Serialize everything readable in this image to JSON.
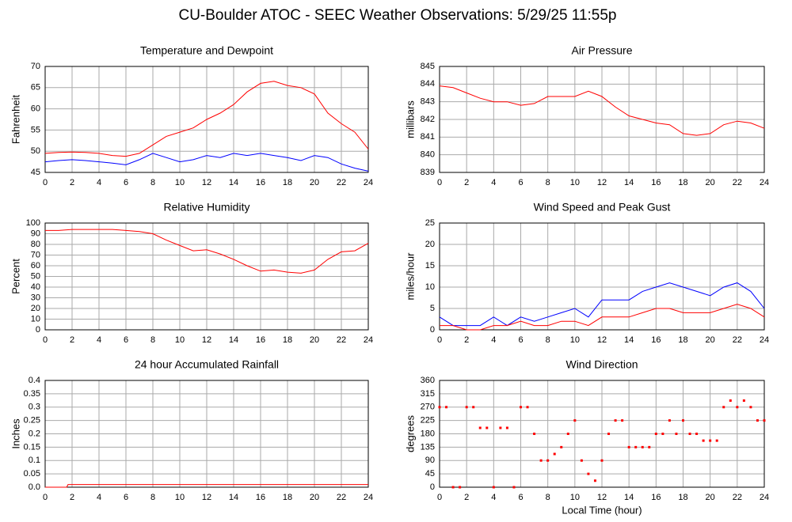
{
  "title": "CU-Boulder ATOC - SEEC Weather Observations: 5/29/25 11:55p",
  "chart_data": [
    {
      "type": "line",
      "title": "Temperature and Dewpoint",
      "ylabel": "Fahrenheit",
      "grid": true,
      "x": [
        0,
        1,
        2,
        3,
        4,
        5,
        6,
        7,
        8,
        9,
        10,
        11,
        12,
        13,
        14,
        15,
        16,
        17,
        18,
        19,
        20,
        21,
        22,
        23,
        24
      ],
      "xlim": [
        0,
        24
      ],
      "xticks": [
        0,
        2,
        4,
        6,
        8,
        10,
        12,
        14,
        16,
        18,
        20,
        22,
        24
      ],
      "ylim": [
        45,
        70
      ],
      "yticks": [
        45,
        50,
        55,
        60,
        65,
        70
      ],
      "series": [
        {
          "color": "#ff0000",
          "values": [
            49.5,
            49.7,
            49.8,
            49.7,
            49.5,
            49,
            48.8,
            49.5,
            51.5,
            53.5,
            54.5,
            55.5,
            57.5,
            59,
            61,
            64,
            66,
            66.5,
            65.5,
            65,
            63.5,
            59,
            56.5,
            54.5,
            50.5
          ]
        },
        {
          "color": "#0000ff",
          "values": [
            47.5,
            47.8,
            48,
            47.8,
            47.5,
            47.2,
            46.8,
            48,
            49.5,
            48.5,
            47.5,
            48,
            49,
            48.5,
            49.5,
            49,
            49.5,
            49,
            48.5,
            47.8,
            49,
            48.5,
            47,
            46,
            45.3
          ]
        }
      ]
    },
    {
      "type": "line",
      "title": "Air Pressure",
      "ylabel": "millibars",
      "grid": true,
      "x": [
        0,
        1,
        2,
        3,
        4,
        5,
        6,
        7,
        8,
        9,
        10,
        11,
        12,
        13,
        14,
        15,
        16,
        17,
        18,
        19,
        20,
        21,
        22,
        23,
        24
      ],
      "xlim": [
        0,
        24
      ],
      "xticks": [
        0,
        2,
        4,
        6,
        8,
        10,
        12,
        14,
        16,
        18,
        20,
        22,
        24
      ],
      "ylim": [
        839,
        845
      ],
      "yticks": [
        839,
        840,
        841,
        842,
        843,
        844,
        845
      ],
      "series": [
        {
          "color": "#ff0000",
          "values": [
            843.9,
            843.8,
            843.5,
            843.2,
            843.0,
            843.0,
            842.8,
            842.9,
            843.3,
            843.3,
            843.3,
            843.6,
            843.3,
            842.7,
            842.2,
            842.0,
            841.8,
            841.7,
            841.2,
            841.1,
            841.2,
            841.7,
            841.9,
            841.8,
            841.5
          ]
        }
      ]
    },
    {
      "type": "line",
      "title": "Relative Humidity",
      "ylabel": "Percent",
      "grid": true,
      "x": [
        0,
        1,
        2,
        3,
        4,
        5,
        6,
        7,
        8,
        9,
        10,
        11,
        12,
        13,
        14,
        15,
        16,
        17,
        18,
        19,
        20,
        21,
        22,
        23,
        24
      ],
      "xlim": [
        0,
        24
      ],
      "xticks": [
        0,
        2,
        4,
        6,
        8,
        10,
        12,
        14,
        16,
        18,
        20,
        22,
        24
      ],
      "ylim": [
        0,
        100
      ],
      "yticks": [
        0,
        10,
        20,
        30,
        40,
        50,
        60,
        70,
        80,
        90,
        100
      ],
      "series": [
        {
          "color": "#ff0000",
          "values": [
            93,
            93,
            94,
            94,
            94,
            94,
            93,
            92,
            90,
            84,
            79,
            74,
            75,
            71,
            66,
            60,
            55,
            56,
            54,
            53,
            56,
            66,
            73,
            74,
            81
          ]
        }
      ]
    },
    {
      "type": "line",
      "title": "Wind Speed and Peak Gust",
      "ylabel": "miles/hour",
      "grid": true,
      "x": [
        0,
        1,
        2,
        3,
        4,
        5,
        6,
        7,
        8,
        9,
        10,
        11,
        12,
        13,
        14,
        15,
        16,
        17,
        18,
        19,
        20,
        21,
        22,
        23,
        24
      ],
      "xlim": [
        0,
        24
      ],
      "xticks": [
        0,
        2,
        4,
        6,
        8,
        10,
        12,
        14,
        16,
        18,
        20,
        22,
        24
      ],
      "ylim": [
        0,
        25
      ],
      "yticks": [
        0,
        5,
        10,
        15,
        20,
        25
      ],
      "series": [
        {
          "color": "#0000ff",
          "values": [
            3,
            1,
            1,
            1,
            3,
            1,
            3,
            2,
            3,
            4,
            5,
            3,
            7,
            7,
            7,
            9,
            10,
            11,
            10,
            9,
            8,
            10,
            11,
            9,
            5
          ]
        },
        {
          "color": "#ff0000",
          "values": [
            1,
            1,
            0,
            0,
            1,
            1,
            2,
            1,
            1,
            2,
            2,
            1,
            3,
            3,
            3,
            4,
            5,
            5,
            4,
            4,
            4,
            5,
            6,
            5,
            3
          ]
        }
      ]
    },
    {
      "type": "line",
      "title": "24 hour Accumulated Rainfall",
      "ylabel": "Inches",
      "grid": true,
      "x": [
        0,
        1.6,
        1.7,
        24
      ],
      "xlim": [
        0,
        24
      ],
      "xticks": [
        0,
        2,
        4,
        6,
        8,
        10,
        12,
        14,
        16,
        18,
        20,
        22,
        24
      ],
      "ylim": [
        0,
        0.4
      ],
      "yticks": [
        {
          "value": 0,
          "label": "0.0"
        },
        0.05,
        0.1,
        0.15,
        0.2,
        0.25,
        0.3,
        0.35,
        0.4
      ],
      "series": [
        {
          "color": "#ff0000",
          "values": [
            0,
            0,
            0.01,
            0.01
          ]
        }
      ]
    },
    {
      "type": "scatter",
      "title": "Wind Direction",
      "ylabel": "degrees",
      "xlabel": "Local Time (hour)",
      "grid": true,
      "x": [
        0,
        0.5,
        1,
        1.5,
        2,
        2.5,
        3,
        3.5,
        4,
        4.5,
        5,
        5.5,
        6,
        6.5,
        7,
        7.5,
        8,
        8.5,
        9,
        9.5,
        10,
        10.5,
        11,
        11.5,
        12,
        12.5,
        13,
        13.5,
        14,
        14.5,
        15,
        15.5,
        16,
        16.5,
        17,
        17.5,
        18,
        18.5,
        19,
        19.5,
        20,
        20.5,
        21,
        21.5,
        22,
        22.5,
        23,
        23.5,
        24
      ],
      "xlim": [
        0,
        24
      ],
      "xticks": [
        0,
        2,
        4,
        6,
        8,
        10,
        12,
        14,
        16,
        18,
        20,
        22,
        24
      ],
      "ylim": [
        0,
        360
      ],
      "yticks": [
        0,
        45,
        90,
        135,
        180,
        225,
        270,
        315,
        360
      ],
      "series": [
        {
          "color": "#ff0000",
          "values": [
            270,
            270,
            0,
            0,
            270,
            270,
            200,
            200,
            0,
            200,
            200,
            0,
            270,
            270,
            180,
            90,
            90,
            112,
            135,
            180,
            225,
            90,
            45,
            22,
            90,
            180,
            225,
            225,
            135,
            135,
            135,
            135,
            180,
            180,
            225,
            180,
            225,
            180,
            180,
            157,
            157,
            157,
            270,
            292,
            270,
            292,
            270,
            225,
            225
          ]
        }
      ]
    }
  ]
}
